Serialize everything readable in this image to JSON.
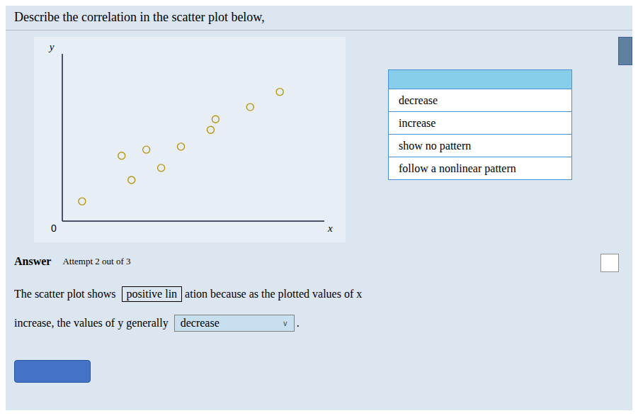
{
  "chart_data": {
    "type": "scatter",
    "title": "Describe the correlation in the scatter plot below,",
    "x_label": "x",
    "y_label": "y",
    "x": [
      0.15,
      0.55,
      0.65,
      0.8,
      0.95,
      1.15,
      1.45,
      1.5,
      1.85,
      2.15
    ],
    "values": [
      0.08,
      0.38,
      0.22,
      0.42,
      0.3,
      0.44,
      0.55,
      0.62,
      0.7,
      0.8
    ],
    "color": "#b8960c",
    "marker": "circle",
    "xlim": [
      -0.05,
      2.6
    ],
    "ylim": [
      -0.05,
      1.05
    ],
    "xticks": [],
    "yticks": [],
    "tick_labels": false,
    "grid": false,
    "annotations": [
      "0",
      "Answer",
      "Attempt 2 out of 3",
      "The scatter plot shows",
      "positive lin",
      "ation because as the plotted values of x",
      "increase, the values of y generally",
      "decrease",
      "∨",
      ".",
      "decrease",
      "increase",
      "show no pattern",
      "follow a nonlinear pattern"
    ]
  }
}
